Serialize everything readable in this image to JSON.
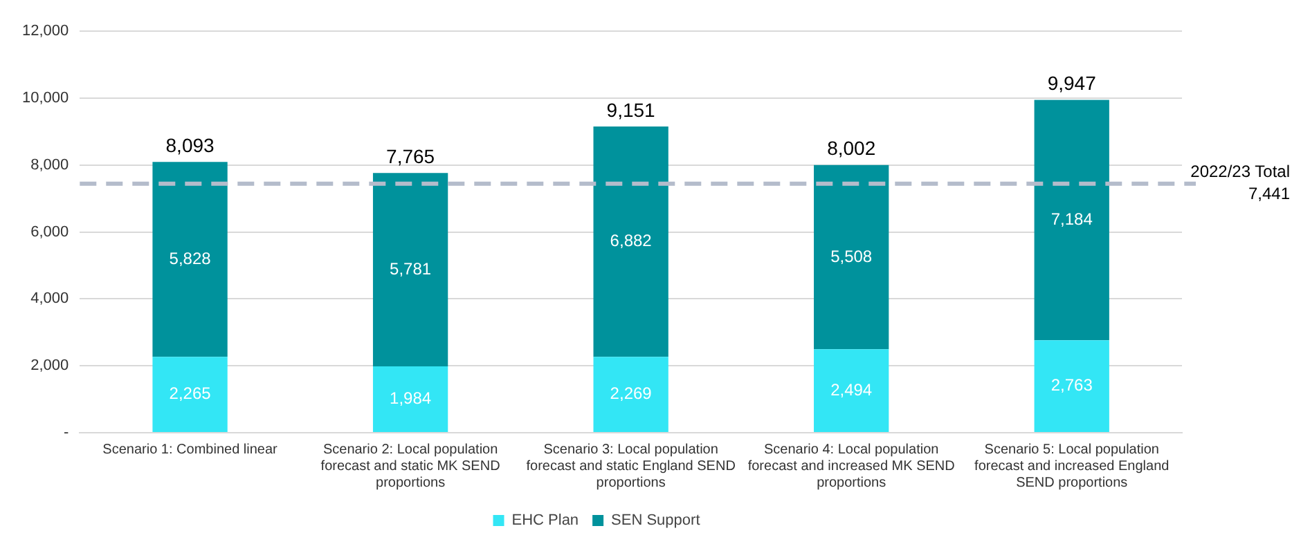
{
  "chart_data": {
    "type": "bar",
    "stacked": true,
    "categories": [
      "Scenario 1: Combined linear",
      "Scenario 2: Local population forecast and static MK SEND proportions",
      "Scenario 3: Local population forecast and static England SEND proportions",
      "Scenario 4: Local population forecast and increased MK SEND proportions",
      "Scenario 5: Local population forecast and increased England SEND proportions"
    ],
    "series": [
      {
        "name": "EHC Plan",
        "color": "#33e6f5",
        "values": [
          2265,
          1984,
          2269,
          2494,
          2763
        ],
        "value_labels": [
          "2,265",
          "1,984",
          "2,269",
          "2,494",
          "2,763"
        ]
      },
      {
        "name": "SEN Support",
        "color": "#00929c",
        "values": [
          5828,
          5781,
          6882,
          5508,
          7184
        ],
        "value_labels": [
          "5,828",
          "5,781",
          "6,882",
          "5,508",
          "7,184"
        ]
      }
    ],
    "totals": [
      "8,093",
      "7,765",
      "9,151",
      "8,002",
      "9,947"
    ],
    "ylim": [
      0,
      12000
    ],
    "yticks": [
      {
        "value": 0,
        "label": "-"
      },
      {
        "value": 2000,
        "label": "2,000"
      },
      {
        "value": 4000,
        "label": "4,000"
      },
      {
        "value": 6000,
        "label": "6,000"
      },
      {
        "value": 8000,
        "label": "8,000"
      },
      {
        "value": 10000,
        "label": "10,000"
      },
      {
        "value": 12000,
        "label": "12,000"
      }
    ],
    "grid": "y",
    "legend": "bottom",
    "ref_lines": [
      {
        "axis": "y",
        "value": 7441,
        "label": "2022/23 Total 7,441",
        "color": "#b4bccb",
        "line_style": "dashed"
      }
    ]
  }
}
